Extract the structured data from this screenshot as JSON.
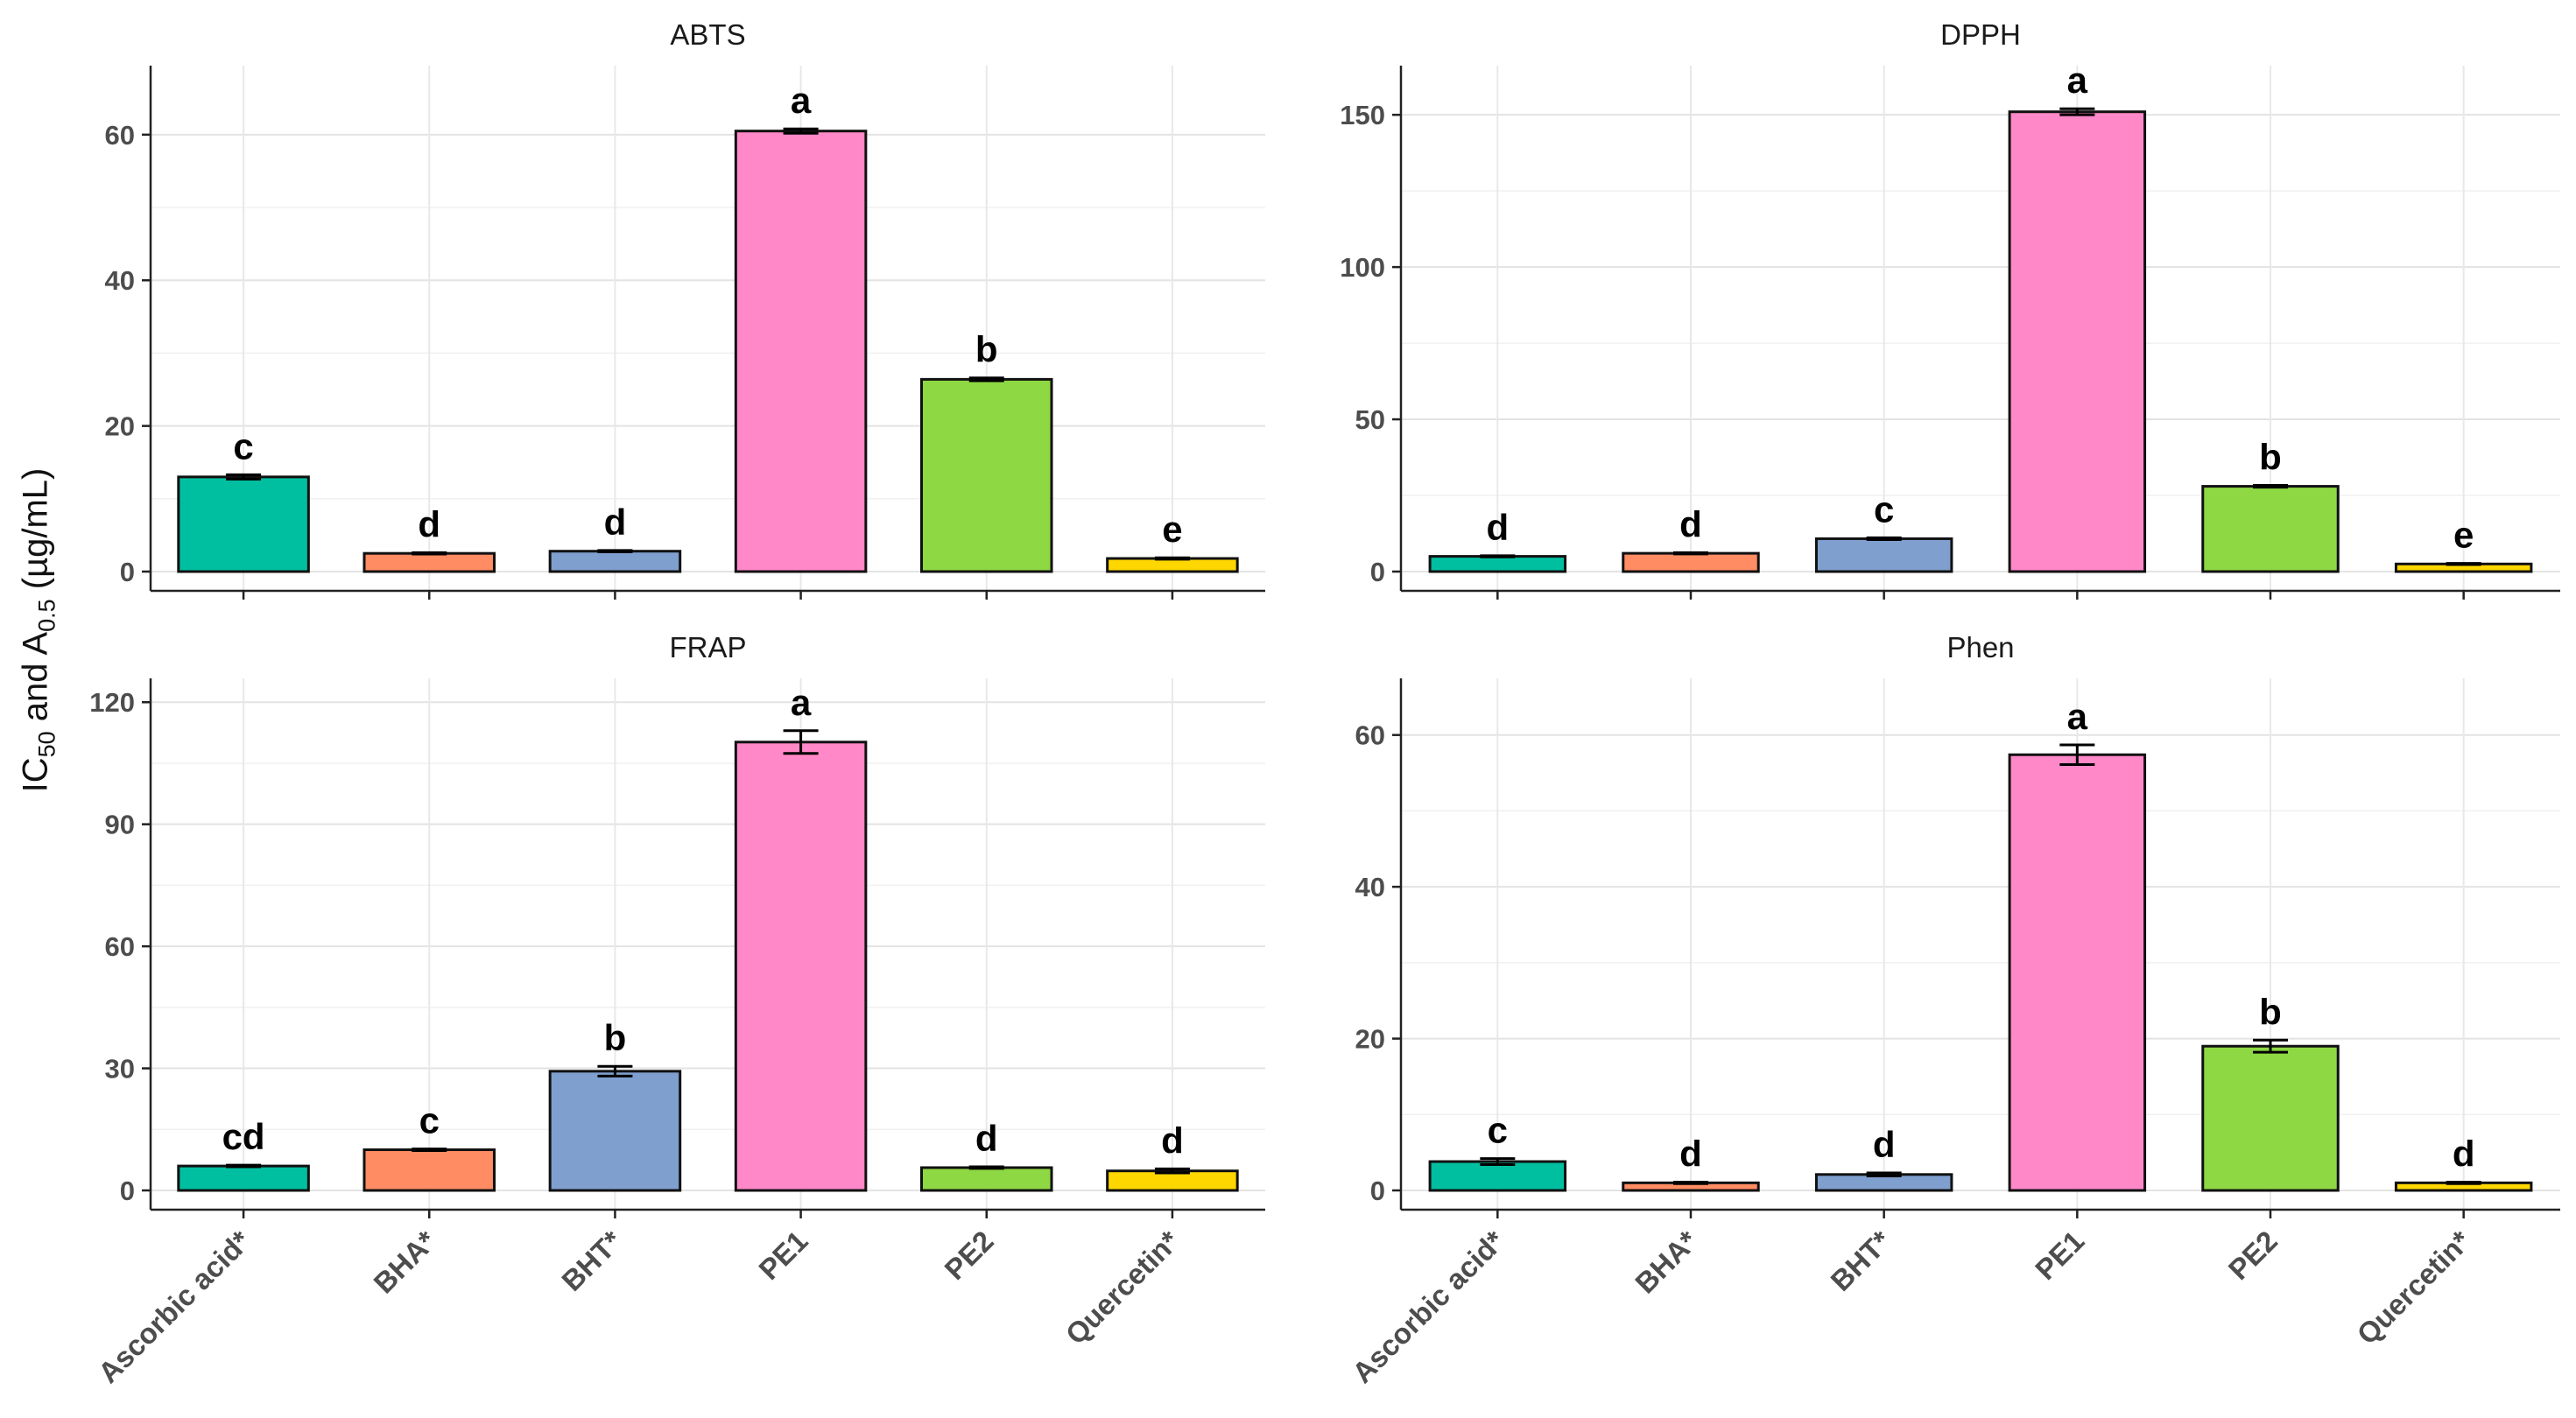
{
  "figure": {
    "ylabel": {
      "pre": "IC",
      "sub1": "50",
      "mid": " and A",
      "sub2": "0.5",
      "post": " (µg/mL)"
    },
    "colors": [
      "#00BFA0",
      "#FF8C63",
      "#7F9FCF",
      "#FF88C8",
      "#8ED843",
      "#FFD700"
    ],
    "categories": [
      "Ascorbic acid*",
      "BHA*",
      "BHT*",
      "PE1",
      "PE2",
      "Quercetin*"
    ]
  },
  "chart_data": [
    {
      "type": "bar",
      "title": "ABTS",
      "categories": [
        "Ascorbic acid*",
        "BHA*",
        "BHT*",
        "PE1",
        "PE2",
        "Quercetin*"
      ],
      "values": [
        13.0,
        2.5,
        2.8,
        60.5,
        26.4,
        1.8
      ],
      "errors": [
        0.3,
        0.1,
        0.1,
        0.3,
        0.2,
        0.1
      ],
      "letters": [
        "c",
        "d",
        "d",
        "a",
        "b",
        "e"
      ],
      "ylim": [
        0,
        69
      ],
      "yticks": [
        0,
        20,
        40,
        60
      ],
      "xlabel": "",
      "ylabel": ""
    },
    {
      "type": "bar",
      "title": "DPPH",
      "categories": [
        "Ascorbic acid*",
        "BHA*",
        "BHT*",
        "PE1",
        "PE2",
        "Quercetin*"
      ],
      "values": [
        5.0,
        6.0,
        10.8,
        151.0,
        28.0,
        2.5
      ],
      "errors": [
        0.2,
        0.2,
        0.3,
        1.0,
        0.3,
        0.2
      ],
      "letters": [
        "d",
        "d",
        "c",
        "a",
        "b",
        "e"
      ],
      "ylim": [
        0,
        165
      ],
      "yticks": [
        0,
        50,
        100,
        150
      ],
      "xlabel": "",
      "ylabel": ""
    },
    {
      "type": "bar",
      "title": "FRAP",
      "categories": [
        "Ascorbic acid*",
        "BHA*",
        "BHT*",
        "PE1",
        "PE2",
        "Quercetin*"
      ],
      "values": [
        6.0,
        10.0,
        29.3,
        110.2,
        5.6,
        4.8
      ],
      "errors": [
        0.2,
        0.2,
        1.2,
        2.8,
        0.2,
        0.5
      ],
      "letters": [
        "cd",
        "c",
        "b",
        "a",
        "d",
        "d"
      ],
      "ylim": [
        0,
        125
      ],
      "yticks": [
        0,
        30,
        60,
        90,
        120
      ],
      "xlabel": "",
      "ylabel": ""
    },
    {
      "type": "bar",
      "title": "Phen",
      "categories": [
        "Ascorbic acid*",
        "BHA*",
        "BHT*",
        "PE1",
        "PE2",
        "Quercetin*"
      ],
      "values": [
        3.8,
        1.0,
        2.1,
        57.4,
        19.0,
        1.0
      ],
      "errors": [
        0.4,
        0.1,
        0.2,
        1.3,
        0.8,
        0.1
      ],
      "letters": [
        "c",
        "d",
        "d",
        "a",
        "b",
        "d"
      ],
      "ylim": [
        0,
        67
      ],
      "yticks": [
        0,
        20,
        40,
        60
      ],
      "xlabel": "",
      "ylabel": ""
    }
  ]
}
